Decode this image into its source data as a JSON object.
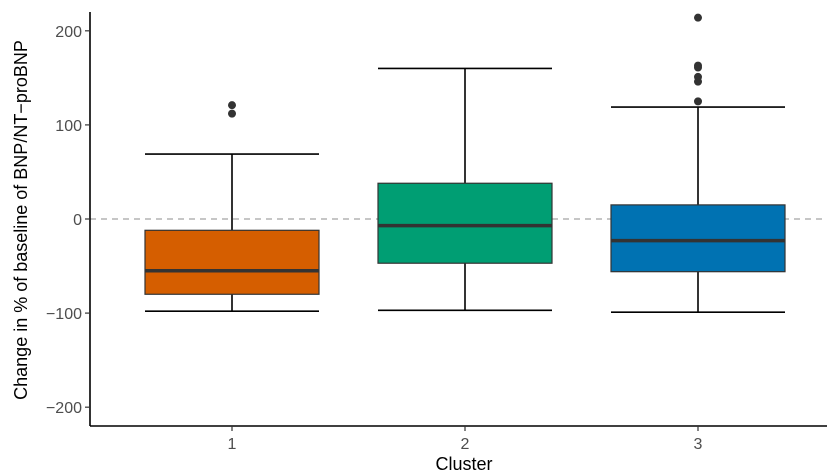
{
  "chart_data": {
    "type": "boxplot",
    "xlabel": "Cluster",
    "ylabel": "Change in % of baseline of BNP/NT−proBNP",
    "categories": [
      "1",
      "2",
      "3"
    ],
    "ylim": [
      -220,
      220
    ],
    "yticks": [
      -200,
      -100,
      0,
      100,
      200
    ],
    "y_tick_labels": [
      "−200",
      "−100",
      "0",
      "100",
      "200"
    ],
    "reference_line": {
      "y": 0,
      "style": "dashed"
    },
    "grid": false,
    "boxes": [
      {
        "category": "1",
        "whisker_low": -98,
        "q1": -80,
        "median": -55,
        "q3": -12,
        "whisker_high": 69,
        "outliers": [
          121,
          112
        ],
        "color": "#D55E00"
      },
      {
        "category": "2",
        "whisker_low": -97,
        "q1": -47,
        "median": -7,
        "q3": 38,
        "whisker_high": 160,
        "outliers": [],
        "color": "#009E73"
      },
      {
        "category": "3",
        "whisker_low": -99,
        "q1": -56,
        "median": -23,
        "q3": 15,
        "whisker_high": 119,
        "outliers": [
          214,
          163,
          161,
          151,
          146,
          125
        ],
        "color": "#0072B2"
      }
    ]
  }
}
